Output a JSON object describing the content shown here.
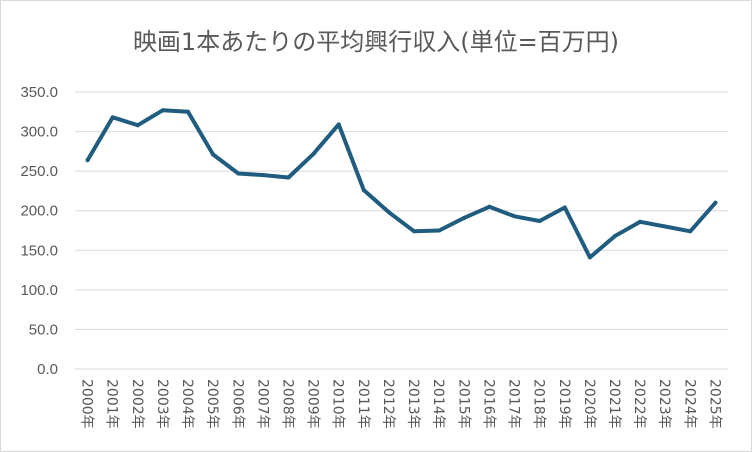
{
  "chart_data": {
    "type": "line",
    "title": "映画1本あたりの平均興行収入(単位=百万円)",
    "xlabel": "",
    "ylabel": "",
    "ylim": [
      0,
      350
    ],
    "y_ticks": [
      "0.0",
      "50.0",
      "100.0",
      "150.0",
      "200.0",
      "250.0",
      "300.0",
      "350.0"
    ],
    "categories": [
      "2000年",
      "2001年",
      "2002年",
      "2003年",
      "2004年",
      "2005年",
      "2006年",
      "2007年",
      "2008年",
      "2009年",
      "2010年",
      "2011年",
      "2012年",
      "2013年",
      "2014年",
      "2015年",
      "2016年",
      "2017年",
      "2018年",
      "2019年",
      "2020年",
      "2021年",
      "2022年",
      "2023年",
      "2024年",
      "2025年"
    ],
    "series": [
      {
        "values": [
          264,
          318,
          308,
          327,
          325,
          271,
          247,
          245,
          242,
          272,
          309,
          226,
          198,
          174,
          175,
          191,
          205,
          193,
          187,
          204,
          141,
          168,
          186,
          180,
          174,
          210
        ]
      }
    ],
    "grid": true,
    "legend": "none",
    "line_color": "#1f5c7f",
    "grid_color": "#d9d9d9"
  }
}
